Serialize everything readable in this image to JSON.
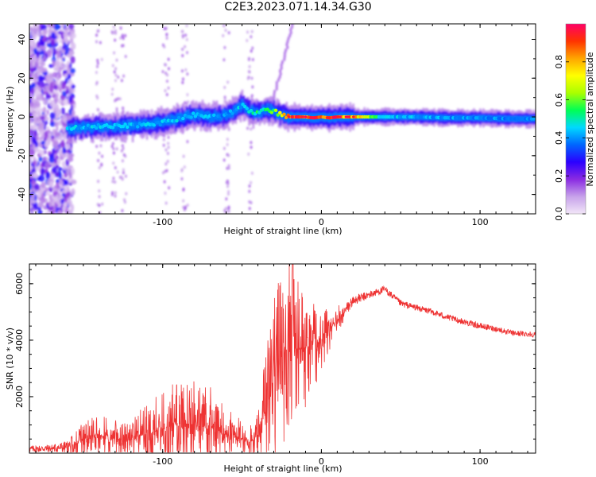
{
  "title": "C2E3.2023.071.14.34.G30",
  "chart_data": [
    {
      "type": "heatmap",
      "xlabel": "Height of straight line (km)",
      "ylabel": "Frequency (Hz)",
      "xlim": [
        -184,
        135
      ],
      "ylim": [
        -50,
        48
      ],
      "x_ticks": [
        "-100",
        "0",
        "100"
      ],
      "y_ticks": [
        "-40",
        "-20",
        "0",
        "20",
        "40"
      ],
      "colorbar": {
        "label": "Normalized spectral amplitude",
        "range": [
          0,
          1
        ],
        "ticks": [
          "0.0",
          "0.2",
          "0.4",
          "0.6",
          "0.8"
        ],
        "colors": [
          "#f2e6f8",
          "#c7a2ea",
          "#8a2be2",
          "#2b00ff",
          "#0066ff",
          "#00d9ff",
          "#00ff55",
          "#aaff00",
          "#ffff00",
          "#ffa500",
          "#ff3300",
          "#ff0066"
        ]
      },
      "ridge": {
        "x": [
          -160,
          -150,
          -140,
          -130,
          -120,
          -110,
          -100,
          -90,
          -80,
          -70,
          -60,
          -55,
          -50,
          -45,
          -40,
          -35,
          -30,
          -25,
          -20,
          -15,
          -10,
          -5,
          0,
          5,
          10,
          20,
          40,
          60,
          80,
          100,
          120,
          135
        ],
        "y": [
          -6,
          -5.5,
          -5,
          -5,
          -4.5,
          -3.5,
          -3,
          -1,
          1,
          0,
          1,
          3,
          6,
          3,
          2,
          4,
          3,
          1,
          0,
          0,
          0,
          -0.5,
          0,
          -0.5,
          0,
          0,
          0,
          0,
          -0.5,
          -0.5,
          -1,
          -1
        ],
        "amplitude": [
          0.45,
          0.45,
          0.45,
          0.5,
          0.45,
          0.45,
          0.45,
          0.45,
          0.45,
          0.45,
          0.4,
          0.45,
          0.45,
          0.5,
          0.55,
          0.55,
          0.6,
          0.75,
          0.95,
          0.95,
          0.9,
          0.9,
          0.9,
          0.95,
          0.9,
          0.85,
          0.45,
          0.45,
          0.42,
          0.42,
          0.4,
          0.4
        ]
      }
    },
    {
      "type": "line",
      "xlabel": "Height of straight line (km)",
      "ylabel": "SNR (10 * v/v)",
      "xlim": [
        -184,
        135
      ],
      "ylim": [
        0,
        6700
      ],
      "x_ticks": [
        "-100",
        "0",
        "100"
      ],
      "y_ticks": [
        "2000",
        "4000",
        "6000"
      ],
      "color": "#ee3333",
      "x": [
        -184,
        -170,
        -160,
        -150,
        -140,
        -130,
        -120,
        -110,
        -100,
        -90,
        -80,
        -70,
        -60,
        -50,
        -45,
        -40,
        -35,
        -30,
        -25,
        -20,
        -15,
        -10,
        -5,
        0,
        10,
        20,
        30,
        40,
        50,
        60,
        70,
        80,
        90,
        100,
        110,
        120,
        135
      ],
      "mean": [
        150,
        170,
        220,
        430,
        600,
        470,
        460,
        700,
        850,
        1000,
        1000,
        900,
        650,
        500,
        420,
        600,
        1500,
        2800,
        3400,
        3600,
        3700,
        3700,
        3850,
        4000,
        4700,
        5400,
        5600,
        5800,
        5300,
        5150,
        5000,
        4800,
        4650,
        4500,
        4400,
        4250,
        4200
      ],
      "spread": [
        120,
        140,
        220,
        400,
        500,
        450,
        450,
        700,
        850,
        1050,
        1050,
        900,
        650,
        420,
        380,
        500,
        1400,
        2000,
        2100,
        2000,
        1800,
        1400,
        1000,
        700,
        300,
        180,
        140,
        130,
        120,
        110,
        110,
        110,
        110,
        110,
        100,
        100,
        100
      ],
      "peak": {
        "x": -18,
        "y": 6700
      }
    }
  ]
}
